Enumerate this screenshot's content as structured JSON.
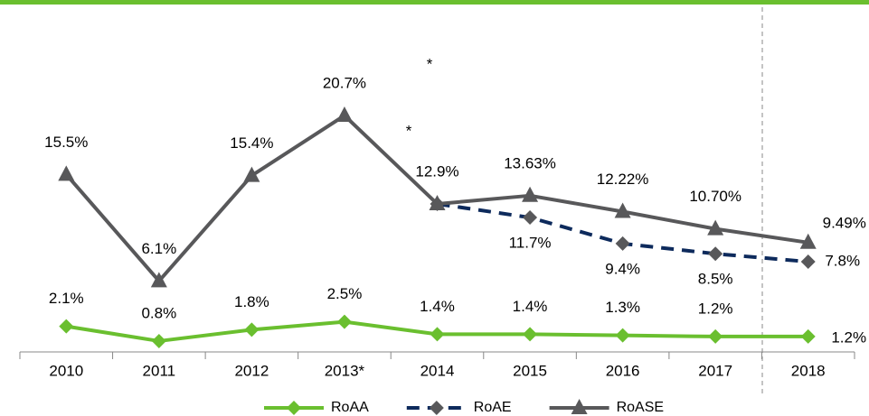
{
  "chart_data": {
    "type": "line",
    "categories": [
      "2010",
      "2011",
      "2012",
      "2013*",
      "2014",
      "2015",
      "2016",
      "2017",
      "2018"
    ],
    "ylim": [
      0,
      25
    ],
    "series": [
      {
        "name": "RoAA",
        "color": "#6abf2f",
        "marker": "diamond",
        "marker_color": "#6abf2f",
        "dashed": false,
        "values": [
          2.1,
          0.8,
          1.8,
          2.5,
          1.4,
          1.4,
          1.3,
          1.2,
          1.2
        ],
        "value_labels": [
          "2.1%",
          "0.8%",
          "1.8%",
          "2.5%",
          "1.4%",
          "1.4%",
          "1.3%",
          "1.2%",
          "1.2%"
        ]
      },
      {
        "name": "RoAE",
        "color": "#0d2a5c",
        "marker": "diamond",
        "marker_color": "#58585a",
        "dashed": true,
        "values": [
          null,
          null,
          null,
          null,
          12.9,
          11.7,
          9.4,
          8.5,
          7.8
        ],
        "value_labels": [
          null,
          null,
          null,
          null,
          null,
          "11.7%",
          "9.4%",
          "8.5%",
          "7.8%"
        ]
      },
      {
        "name": "RoASE",
        "color": "#58585a",
        "marker": "triangle",
        "marker_color": "#58585a",
        "dashed": false,
        "values": [
          15.5,
          6.1,
          15.4,
          20.7,
          12.9,
          13.63,
          12.22,
          10.7,
          9.49
        ],
        "value_labels": [
          "15.5%",
          "6.1%",
          "15.4%",
          "20.7%",
          "12.9%",
          "13.63%",
          "12.22%",
          "10.70%",
          "9.49%"
        ]
      }
    ],
    "annotations": [
      "*",
      "*"
    ]
  }
}
